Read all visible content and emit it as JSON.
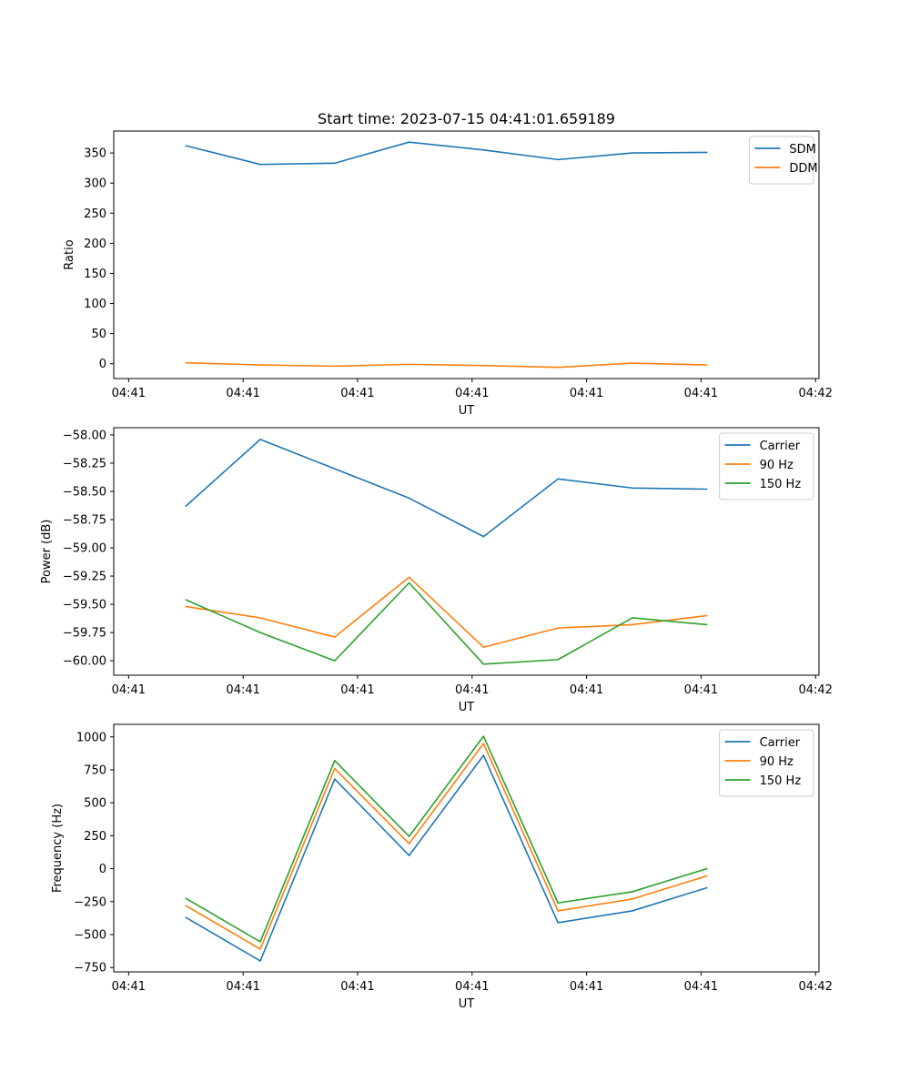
{
  "figure": {
    "title": "Start time: 2023-07-15 04:41:01.659189"
  },
  "colors": {
    "series1": "#1f77b4",
    "series2": "#ff7f0e",
    "series3": "#2ca02c"
  },
  "chart_data": [
    {
      "type": "line",
      "xlabel": "UT",
      "ylabel": "Ratio",
      "x_tick_labels": [
        "04:41",
        "04:41",
        "04:41",
        "04:41",
        "04:41",
        "04:41",
        "04:42"
      ],
      "x": [
        0.5,
        1.15,
        1.8,
        2.45,
        3.1,
        3.75,
        4.4,
        5.05
      ],
      "xlim": [
        -0.13,
        6.03
      ],
      "ylim": [
        -24.6,
        386.4
      ],
      "yticks": [
        0,
        50,
        100,
        150,
        200,
        250,
        300,
        350
      ],
      "legend_loc": "top-right",
      "series": [
        {
          "name": "SDM",
          "color_key": "series1",
          "values": [
            362,
            331,
            333,
            368,
            355,
            339,
            350,
            351
          ]
        },
        {
          "name": "DDM",
          "color_key": "series2",
          "values": [
            1.5,
            -2,
            -4,
            -1,
            -3,
            -6,
            1,
            -2
          ]
        }
      ]
    },
    {
      "type": "line",
      "xlabel": "UT",
      "ylabel": "Power (dB)",
      "x_tick_labels": [
        "04:41",
        "04:41",
        "04:41",
        "04:41",
        "04:41",
        "04:41",
        "04:42"
      ],
      "x": [
        0.5,
        1.15,
        1.8,
        2.45,
        3.1,
        3.75,
        4.4,
        5.05
      ],
      "xlim": [
        -0.13,
        6.03
      ],
      "ylim": [
        -60.128,
        -57.936
      ],
      "yticks": [
        -60.0,
        -59.75,
        -59.5,
        -59.25,
        -59.0,
        -58.75,
        -58.5,
        -58.25,
        -58.0
      ],
      "y_tick_labels": [
        "−60.00",
        "−59.75",
        "−59.50",
        "−59.25",
        "−59.00",
        "−58.75",
        "−58.50",
        "−58.25",
        "−58.00"
      ],
      "legend_loc": "top-right",
      "series": [
        {
          "name": "Carrier",
          "color_key": "series1",
          "values": [
            -58.63,
            -58.04,
            -58.3,
            -58.56,
            -58.9,
            -58.39,
            -58.47,
            -58.48
          ]
        },
        {
          "name": "90 Hz",
          "color_key": "series2",
          "values": [
            -59.52,
            -59.62,
            -59.79,
            -59.26,
            -59.88,
            -59.71,
            -59.68,
            -59.6
          ]
        },
        {
          "name": "150 Hz",
          "color_key": "series3",
          "values": [
            -59.46,
            -59.75,
            -60.0,
            -59.31,
            -60.03,
            -59.99,
            -59.62,
            -59.68
          ]
        }
      ]
    },
    {
      "type": "line",
      "xlabel": "UT",
      "ylabel": "Frequency (Hz)",
      "x_tick_labels": [
        "04:41",
        "04:41",
        "04:41",
        "04:41",
        "04:41",
        "04:41",
        "04:42"
      ],
      "x": [
        0.5,
        1.15,
        1.8,
        2.45,
        3.1,
        3.75,
        4.4,
        5.05
      ],
      "xlim": [
        -0.13,
        6.03
      ],
      "ylim": [
        -783,
        1095
      ],
      "yticks": [
        -750,
        -500,
        -250,
        0,
        250,
        500,
        750,
        1000
      ],
      "y_tick_labels": [
        "−750",
        "−500",
        "−250",
        "0",
        "250",
        "500",
        "750",
        "1000"
      ],
      "legend_loc": "top-right",
      "series": [
        {
          "name": "Carrier",
          "color_key": "series1",
          "values": [
            -370,
            -700,
            680,
            100,
            860,
            -410,
            -320,
            -145
          ]
        },
        {
          "name": "90 Hz",
          "color_key": "series2",
          "values": [
            -280,
            -610,
            760,
            190,
            950,
            -320,
            -230,
            -55
          ]
        },
        {
          "name": "150 Hz",
          "color_key": "series3",
          "values": [
            -225,
            -555,
            820,
            245,
            1005,
            -260,
            -175,
            0
          ]
        }
      ]
    }
  ]
}
